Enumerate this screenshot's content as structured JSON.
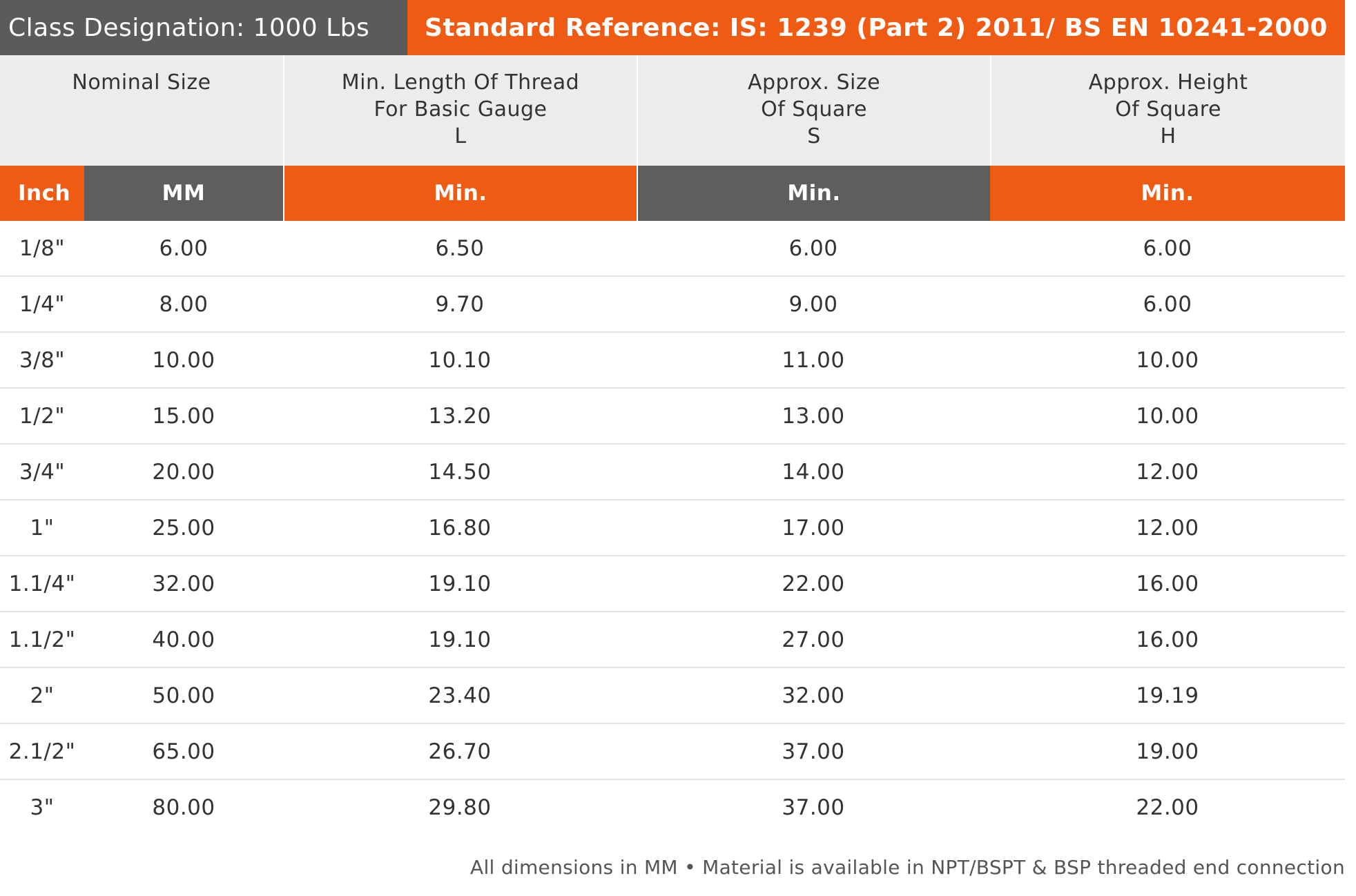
{
  "top": {
    "class_designation": "Class Designation: 1000 Lbs",
    "standard_reference": "Standard Reference: IS: 1239 (Part 2) 2011/ BS EN 10241-2000"
  },
  "headers": {
    "nominal_size": [
      "Nominal Size"
    ],
    "thread_length": [
      "Min. Length Of Thread",
      "For Basic Gauge",
      "L"
    ],
    "square_size": [
      "Approx. Size",
      "Of Square",
      "S"
    ],
    "square_height": [
      "Approx. Height",
      "Of Square",
      "H"
    ]
  },
  "subheaders": {
    "inch": "Inch",
    "mm": "MM",
    "min_thread": "Min.",
    "min_size": "Min.",
    "min_height": "Min."
  },
  "rows": [
    {
      "inch": "1/8\"",
      "mm": "6.00",
      "thread": "6.50",
      "size": "6.00",
      "height": "6.00"
    },
    {
      "inch": "1/4\"",
      "mm": "8.00",
      "thread": "9.70",
      "size": "9.00",
      "height": "6.00"
    },
    {
      "inch": "3/8\"",
      "mm": "10.00",
      "thread": "10.10",
      "size": "11.00",
      "height": "10.00"
    },
    {
      "inch": "1/2\"",
      "mm": "15.00",
      "thread": "13.20",
      "size": "13.00",
      "height": "10.00"
    },
    {
      "inch": "3/4\"",
      "mm": "20.00",
      "thread": "14.50",
      "size": "14.00",
      "height": "12.00"
    },
    {
      "inch": "1\"",
      "mm": "25.00",
      "thread": "16.80",
      "size": "17.00",
      "height": "12.00"
    },
    {
      "inch": "1.1/4\"",
      "mm": "32.00",
      "thread": "19.10",
      "size": "22.00",
      "height": "16.00"
    },
    {
      "inch": "1.1/2\"",
      "mm": "40.00",
      "thread": "19.10",
      "size": "27.00",
      "height": "16.00"
    },
    {
      "inch": "2\"",
      "mm": "50.00",
      "thread": "23.40",
      "size": "32.00",
      "height": "19.19"
    },
    {
      "inch": "2.1/2\"",
      "mm": "65.00",
      "thread": "26.70",
      "size": "37.00",
      "height": "19.00"
    },
    {
      "inch": "3\"",
      "mm": "80.00",
      "thread": "29.80",
      "size": "37.00",
      "height": "22.00"
    }
  ],
  "footnote": "All dimensions in MM • Material is available in NPT/BSPT & BSP threaded end connection"
}
